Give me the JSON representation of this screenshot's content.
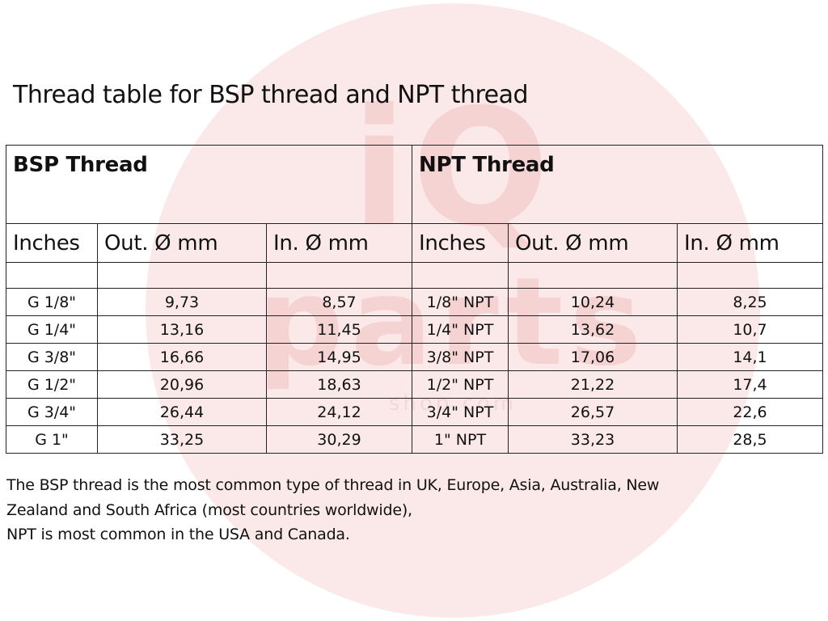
{
  "title": "Thread table for BSP thread and NPT thread",
  "groups": {
    "bsp": "BSP Thread",
    "npt": "NPT Thread"
  },
  "headers": {
    "bsp_inches": "Inches",
    "bsp_out": "Out. Ø mm",
    "bsp_in": "In. Ø mm",
    "npt_inches": "Inches",
    "npt_out": "Out. Ø mm",
    "npt_in": "In. Ø mm"
  },
  "rows": [
    {
      "bsp_size": "G 1/8\"",
      "bsp_out": "9,73",
      "bsp_in": "8,57",
      "npt_size": "1/8\" NPT",
      "npt_out": "10,24",
      "npt_in": "8,25"
    },
    {
      "bsp_size": "G 1/4\"",
      "bsp_out": "13,16",
      "bsp_in": "11,45",
      "npt_size": "1/4\" NPT",
      "npt_out": "13,62",
      "npt_in": "10,7"
    },
    {
      "bsp_size": "G 3/8\"",
      "bsp_out": "16,66",
      "bsp_in": "14,95",
      "npt_size": "3/8\" NPT",
      "npt_out": "17,06",
      "npt_in": "14,1"
    },
    {
      "bsp_size": "G 1/2\"",
      "bsp_out": "20,96",
      "bsp_in": "18,63",
      "npt_size": "1/2\" NPT",
      "npt_out": "21,22",
      "npt_in": "17,4"
    },
    {
      "bsp_size": "G 3/4\"",
      "bsp_out": "26,44",
      "bsp_in": "24,12",
      "npt_size": "3/4\" NPT",
      "npt_out": "26,57",
      "npt_in": "22,6"
    },
    {
      "bsp_size": "G 1\"",
      "bsp_out": "33,25",
      "bsp_in": "30,29",
      "npt_size": "1\" NPT",
      "npt_out": "33,23",
      "npt_in": "28,5"
    }
  ],
  "footnote": [
    "The BSP thread is the most common type of thread in UK, Europe, Asia, Australia, New",
    "Zealand and South Africa (most countries worldwide),",
    "NPT is most common in the USA and Canada."
  ],
  "watermark": {
    "line1": "iQ",
    "line2": "parts",
    "line3": "shop.com"
  }
}
